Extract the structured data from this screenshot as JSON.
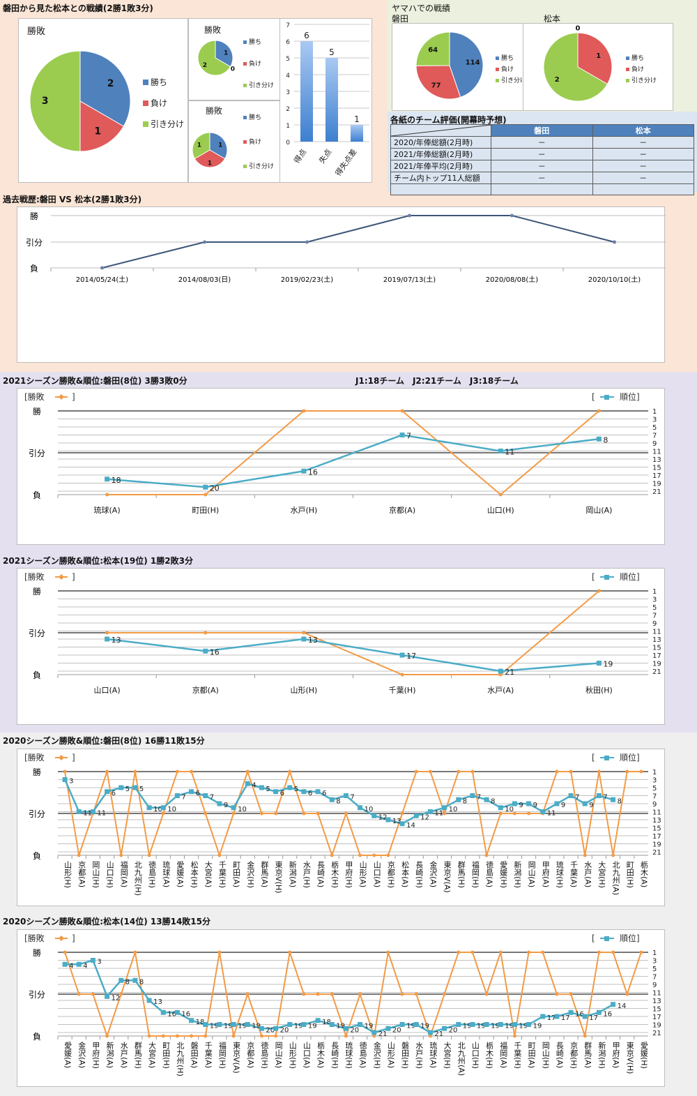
{
  "colors": {
    "win": "#4f81bd",
    "loss": "#e05a5a",
    "draw": "#9bcc4f",
    "result_line": "#f39a45",
    "rank_line": "#4bacc6",
    "peach": "#fbe5d6",
    "lavender": "#e4e0f0",
    "gray": "#efefef",
    "greenish": "#ebf1de"
  },
  "header": {
    "h2h_title": "磐田から見た松本との戦績(2勝1敗3分)",
    "yamaha_title": "ヤマハでの戦績",
    "yamaha_iwata": "磐田",
    "yamaha_matsumoto": "松本",
    "eval_title": "各紙のチーム評価(開幕時予想)"
  },
  "legend": {
    "win": "勝ち",
    "loss": "負け",
    "draw": "引き分け",
    "draw_cut": "引き分け"
  },
  "eval_table": {
    "columns": [
      "磐田",
      "松本"
    ],
    "rows": [
      {
        "label": "2020/年俸総額(2月時)",
        "iwata": "－",
        "matsumoto": "－"
      },
      {
        "label": "2021/年俸総額(2月時)",
        "iwata": "－",
        "matsumoto": "－"
      },
      {
        "label": "2021/年俸平均(2月時)",
        "iwata": "－",
        "matsumoto": "－"
      },
      {
        "label": "チーム内トップ11人総額",
        "iwata": "－",
        "matsumoto": "－"
      },
      {
        "label": "",
        "iwata": "",
        "matsumoto": ""
      }
    ]
  },
  "chart_data": [
    {
      "id": "h2h_pie",
      "type": "pie",
      "title": "勝敗",
      "labels": [
        "勝ち",
        "負け",
        "引き分け"
      ],
      "values": [
        2,
        1,
        3
      ]
    },
    {
      "id": "h2h_pie_small1",
      "type": "pie",
      "title": "勝敗",
      "labels": [
        "勝ち",
        "負け",
        "引き分け"
      ],
      "values": [
        1,
        0,
        2
      ]
    },
    {
      "id": "h2h_pie_small2",
      "type": "pie",
      "title": "勝敗",
      "labels": [
        "勝ち",
        "負け",
        "引き分け"
      ],
      "values": [
        1,
        1,
        1
      ]
    },
    {
      "id": "goals_bar",
      "type": "bar",
      "categories": [
        "得点",
        "失点",
        "得失点差"
      ],
      "values": [
        6,
        5,
        1
      ],
      "ylim": [
        0,
        7
      ],
      "yticks": [
        0,
        1,
        2,
        3,
        4,
        5,
        6,
        7
      ]
    },
    {
      "id": "yamaha_iwata_pie",
      "type": "pie",
      "title": "磐田",
      "labels": [
        "勝ち",
        "負け",
        "引き分け"
      ],
      "values": [
        114,
        77,
        64
      ]
    },
    {
      "id": "yamaha_matsumoto_pie",
      "type": "pie",
      "title": "松本",
      "labels": [
        "勝ち",
        "負け",
        "引き分け"
      ],
      "values": [
        0,
        1,
        2
      ]
    },
    {
      "id": "history",
      "type": "line",
      "title": "過去戦歴:磐田 VS 松本(2勝1敗3分)",
      "ylabels": [
        "負",
        "引分",
        "勝"
      ],
      "x": [
        "2014/05/24(土)",
        "2014/08/03(日)",
        "2019/02/23(土)",
        "2019/07/13(土)",
        "2020/08/08(土)",
        "2020/10/10(土)"
      ],
      "results": [
        "L",
        "D",
        "D",
        "W",
        "W",
        "D"
      ]
    },
    {
      "id": "iwata2021",
      "type": "line",
      "title": "2021シーズン勝敗&順位:磐田(8位) 3勝3敗0分",
      "note": "J1:18チーム　J2:21チーム　J3:18チーム",
      "legend_left": "[勝敗",
      "legend_right": "順位]",
      "ylabels": [
        "負",
        "引分",
        "勝"
      ],
      "rank_ticks": [
        1,
        3,
        5,
        7,
        9,
        11,
        13,
        15,
        17,
        19,
        21
      ],
      "x": [
        "琉球(A)",
        "町田(H)",
        "水戸(H)",
        "京都(A)",
        "山口(H)",
        "岡山(A)"
      ],
      "results": [
        "L",
        "L",
        "W",
        "W",
        "L",
        "W"
      ],
      "ranks": [
        18,
        20,
        16,
        7,
        11,
        8
      ]
    },
    {
      "id": "matsumoto2021",
      "type": "line",
      "title": "2021シーズン勝敗&順位:松本(19位) 1勝2敗3分",
      "legend_left": "[勝敗",
      "legend_right": "順位]",
      "ylabels": [
        "負",
        "引分",
        "勝"
      ],
      "rank_ticks": [
        1,
        3,
        5,
        7,
        9,
        11,
        13,
        15,
        17,
        19,
        21
      ],
      "x": [
        "山口(A)",
        "京都(A)",
        "山形(H)",
        "千葉(H)",
        "水戸(A)",
        "秋田(H)"
      ],
      "results": [
        "D",
        "D",
        "D",
        "L",
        "L",
        "W"
      ],
      "ranks": [
        13,
        16,
        13,
        17,
        21,
        19
      ]
    },
    {
      "id": "iwata2020",
      "type": "line",
      "title": "2020シーズン勝敗&順位:磐田(8位) 16勝11敗15分",
      "legend_left": "[勝敗",
      "legend_right": "順位]",
      "ylabels": [
        "負",
        "引分",
        "勝"
      ],
      "rank_ticks": [
        1,
        3,
        5,
        7,
        9,
        11,
        13,
        15,
        17,
        19,
        21
      ],
      "x": [
        "山形(H)",
        "京都(A)",
        "岡山(H)",
        "山口(H)",
        "福岡(A)",
        "北九州(H)",
        "徳島(H)",
        "琉球(A)",
        "愛媛(A)",
        "松本(H)",
        "大宮(A)",
        "千葉(H)",
        "町田(A)",
        "金沢(H)",
        "群馬(A)",
        "東京V(H)",
        "新潟(A)",
        "水戸(H)",
        "長崎(A)",
        "栃木(H)",
        "甲府(H)",
        "山形(A)",
        "山口(A)",
        "京都(H)",
        "松本(A)",
        "長崎(H)",
        "金沢(A)",
        "東京V(A)",
        "群馬(H)",
        "福岡(H)",
        "徳島(A)",
        "愛媛(H)",
        "新潟(H)",
        "岡山(A)",
        "甲府(A)",
        "琉球(H)",
        "千葉(A)",
        "水戸(A)",
        "大宮(H)",
        "北九州(A)",
        "町田(H)",
        "栃木(A)"
      ],
      "results": [
        "W",
        "L",
        "D",
        "W",
        "L",
        "W",
        "L",
        "D",
        "W",
        "W",
        "D",
        "L",
        "D",
        "W",
        "D",
        "D",
        "W",
        "D",
        "D",
        "L",
        "D",
        "L",
        "L",
        "L",
        "D",
        "W",
        "W",
        "D",
        "W",
        "W",
        "L",
        "D",
        "D",
        "D",
        "D",
        "W",
        "W",
        "L",
        "W",
        "L",
        "W",
        "W"
      ],
      "ranks": [
        3,
        11,
        11,
        6,
        5,
        5,
        10,
        10,
        7,
        6,
        7,
        9,
        10,
        4,
        5,
        6,
        5,
        6,
        6,
        8,
        7,
        10,
        12,
        13,
        14,
        12,
        11,
        10,
        8,
        7,
        8,
        10,
        9,
        9,
        11,
        9,
        7,
        9,
        7,
        8,
        null,
        null
      ]
    },
    {
      "id": "matsumoto2020",
      "type": "line",
      "title": "2020シーズン勝敗&順位:松本(14位) 13勝14敗15分",
      "legend_left": "[勝敗",
      "legend_right": "順位]",
      "ylabels": [
        "負",
        "引分",
        "勝"
      ],
      "rank_ticks": [
        1,
        3,
        5,
        7,
        9,
        11,
        13,
        15,
        17,
        19,
        21
      ],
      "x": [
        "愛媛(A)",
        "金沢(A)",
        "甲府(H)",
        "新潟(A)",
        "水戸(A)",
        "群馬(H)",
        "大宮(A)",
        "町田(H)",
        "北九州(H)",
        "磐田(A)",
        "千葉(A)",
        "福岡(H)",
        "東京V(A)",
        "京都(A)",
        "徳島(H)",
        "岡山(A)",
        "山形(H)",
        "山口(A)",
        "栃木(A)",
        "長崎(H)",
        "琉球(H)",
        "徳島(A)",
        "金沢(H)",
        "山形(A)",
        "磐田(H)",
        "水戸(H)",
        "琉球(A)",
        "大宮(H)",
        "北九州(A)",
        "山口(H)",
        "栃木(H)",
        "福岡(A)",
        "千葉(H)",
        "町田(A)",
        "岡山(H)",
        "長崎(A)",
        "京都(H)",
        "群馬(A)",
        "新潟(H)",
        "甲府(A)",
        "東京V(H)",
        "愛媛(H)"
      ],
      "results": [
        "W",
        "D",
        "D",
        "L",
        "D",
        "W",
        "L",
        "L",
        "L",
        "L",
        "L",
        "W",
        "L",
        "D",
        "L",
        "L",
        "W",
        "D",
        "D",
        "D",
        "L",
        "D",
        "L",
        "W",
        "D",
        "D",
        "L",
        "D",
        "W",
        "W",
        "D",
        "W",
        "L",
        "W",
        "W",
        "D",
        "D",
        "L",
        "W",
        "W",
        "D",
        "W"
      ],
      "ranks": [
        4,
        4,
        3,
        12,
        8,
        8,
        13,
        16,
        16,
        18,
        19,
        19,
        19,
        19,
        20,
        20,
        19,
        19,
        18,
        19,
        20,
        19,
        21,
        20,
        19,
        19,
        21,
        20,
        19,
        19,
        19,
        19,
        19,
        19,
        17,
        17,
        16,
        17,
        16,
        14,
        null,
        null
      ]
    }
  ]
}
